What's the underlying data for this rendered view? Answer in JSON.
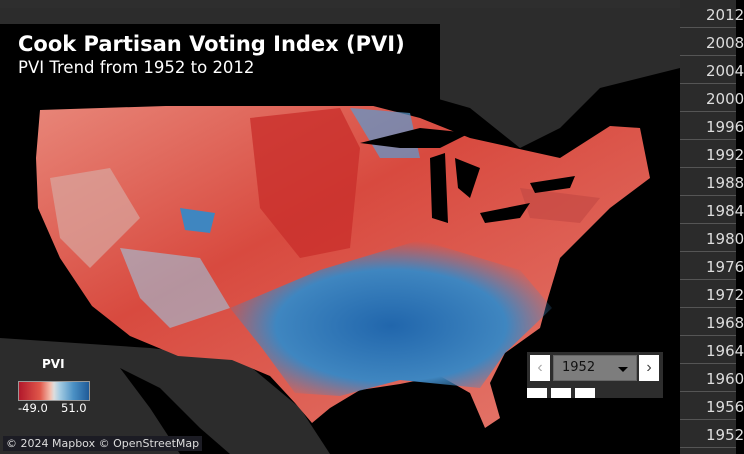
{
  "title": "Cook Partisan Voting Index (PVI)",
  "subtitle": "PVI Trend from 1952 to 2012",
  "legend": {
    "title": "PVI",
    "min": "-49.0",
    "max": "51.0",
    "colors": {
      "low": "#b2182b",
      "mid": "#dddddd",
      "high": "#1f5a98"
    }
  },
  "player": {
    "selected_year": "1952",
    "prev_icon": "chevron-left",
    "next_icon": "chevron-right"
  },
  "attribution": "© 2024 Mapbox © OpenStreetMap",
  "years": [
    "2012",
    "2008",
    "2004",
    "2000",
    "1996",
    "1992",
    "1988",
    "1984",
    "1980",
    "1976",
    "1972",
    "1968",
    "1964",
    "1960",
    "1956",
    "1952"
  ]
}
